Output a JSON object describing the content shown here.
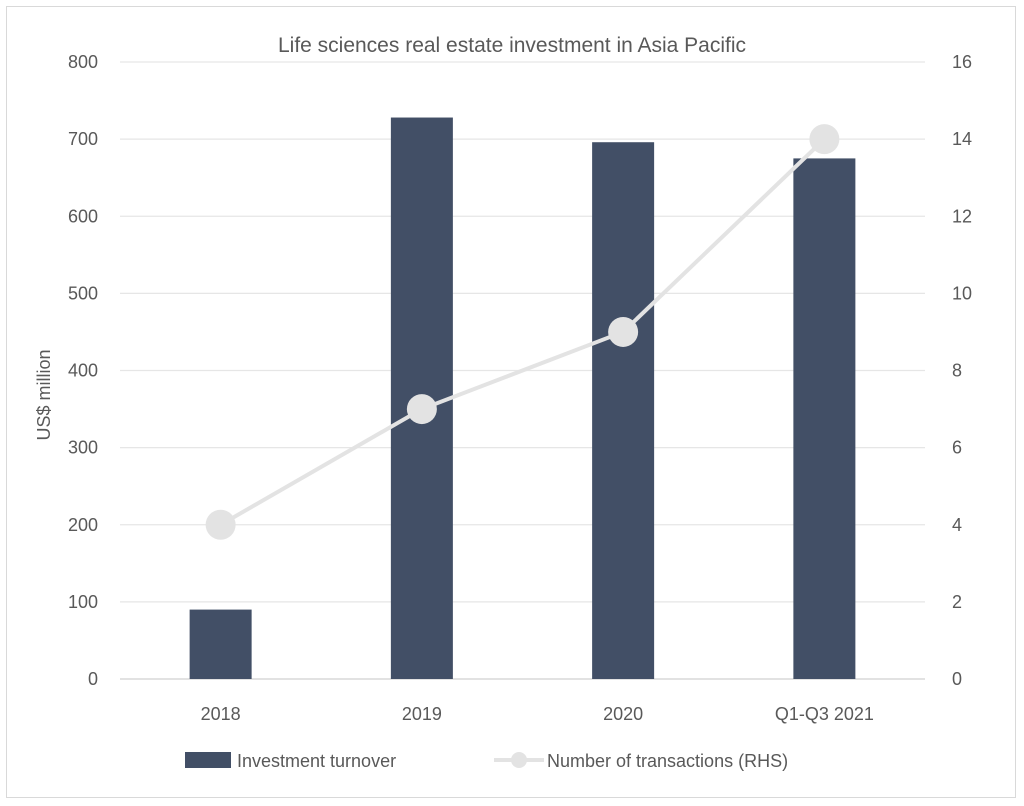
{
  "chart_data": {
    "type": "bar+line",
    "title": "Life sciences real estate investment in Asia Pacific",
    "categories": [
      "2018",
      "2019",
      "2020",
      "Q1-Q3 2021"
    ],
    "series": [
      {
        "name": "Investment turnover",
        "type": "bar",
        "axis": "left",
        "values": [
          90,
          728,
          696,
          675
        ],
        "color": "#424f66"
      },
      {
        "name": "Number of transactions (RHS)",
        "type": "line",
        "axis": "right",
        "values": [
          4,
          7,
          9,
          14
        ],
        "color": "#e3e3e3"
      }
    ],
    "ylabel": "US$ million",
    "ylim": [
      0,
      800
    ],
    "yticks": [
      "0",
      "100",
      "200",
      "300",
      "400",
      "500",
      "600",
      "700",
      "800"
    ],
    "y2lim": [
      0,
      16
    ],
    "y2ticks": [
      "0",
      "2",
      "4",
      "6",
      "8",
      "10",
      "12",
      "14",
      "16"
    ],
    "grid": true,
    "legend": "bottom"
  }
}
